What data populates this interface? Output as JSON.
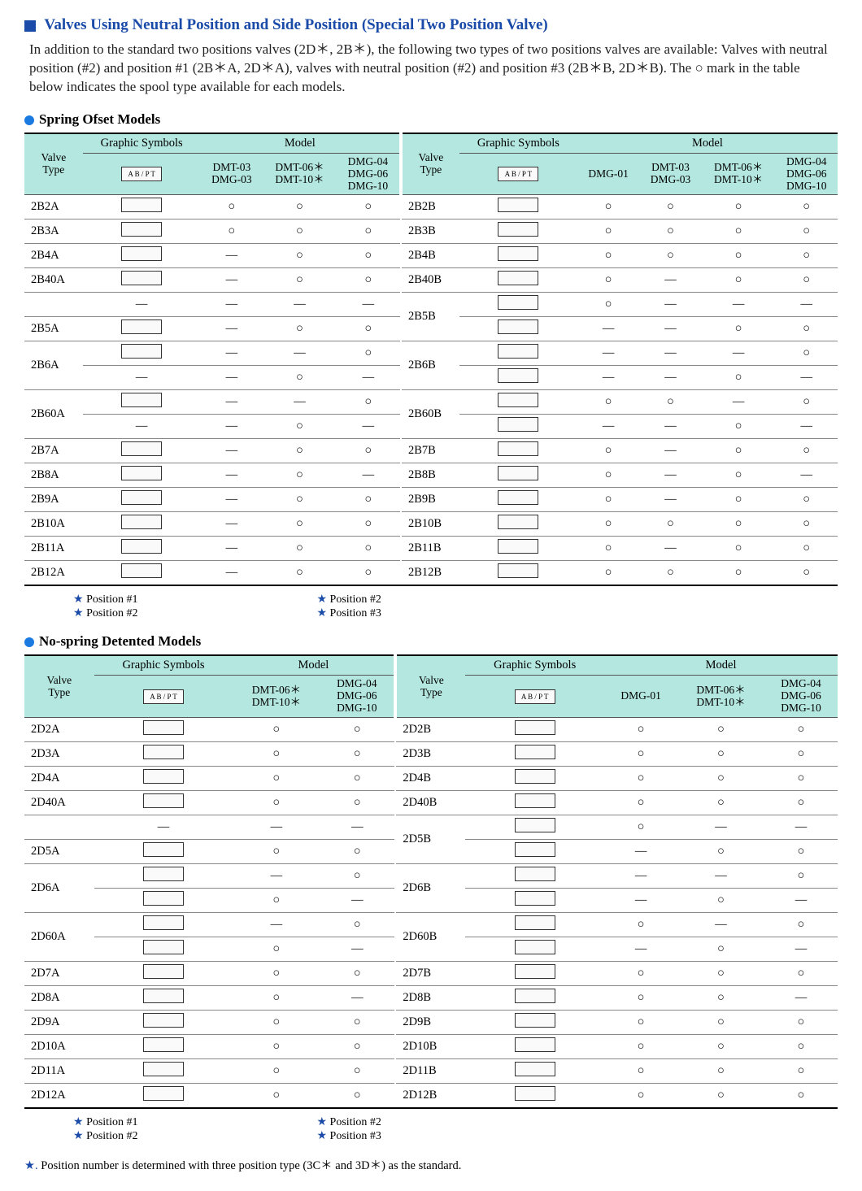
{
  "colors": {
    "heading_blue": "#1a4ba8",
    "dot_blue": "#1a7ae0",
    "header_bg": "#b3e7df",
    "border": "#888"
  },
  "title": "Valves Using Neutral Position and Side Position (Special Two Position Valve)",
  "intro": "In addition to the standard two positions valves (2D＊, 2B＊), the following two types of two positions valves are available: Valves with neutral position (#2) and position #1 (2B＊A, 2D＊A), valves with neutral position (#2) and position #3 (2B＊B, 2D＊B).\nThe ○ mark in the table below indicates the spool type available for each models.",
  "marks": {
    "circle": "○",
    "dash": "—"
  },
  "labels": {
    "valve_type": "Valve\nType",
    "graphic_symbols": "Graphic Symbols",
    "model": "Model",
    "pos1": "Position #1",
    "pos2": "Position #2",
    "pos3": "Position #3"
  },
  "sections": [
    {
      "title": "Spring Ofset Models",
      "left": {
        "model_cols": [
          "DMT-03\nDMG-03",
          "DMT-06＊\nDMT-10＊",
          "DMG-04\nDMG-06\nDMG-10"
        ],
        "rows": [
          {
            "vt": "2B2A",
            "m": [
              "○",
              "○",
              "○"
            ]
          },
          {
            "vt": "2B3A",
            "m": [
              "○",
              "○",
              "○"
            ]
          },
          {
            "vt": "2B4A",
            "m": [
              "—",
              "○",
              "○"
            ]
          },
          {
            "vt": "2B40A",
            "m": [
              "—",
              "○",
              "○"
            ]
          },
          {
            "vt": "",
            "m": [
              "—",
              "—",
              "—"
            ]
          },
          {
            "vt": "2B5A",
            "m": [
              "—",
              "○",
              "○"
            ]
          },
          {
            "vt": "2B6A",
            "m": [
              "—",
              "—",
              "○"
            ],
            "span": 2
          },
          {
            "vt": "",
            "m": [
              "—",
              "○",
              "—"
            ]
          },
          {
            "vt": "2B60A",
            "m": [
              "—",
              "—",
              "○"
            ],
            "span": 2
          },
          {
            "vt": "",
            "m": [
              "—",
              "○",
              "—"
            ]
          },
          {
            "vt": "2B7A",
            "m": [
              "—",
              "○",
              "○"
            ]
          },
          {
            "vt": "2B8A",
            "m": [
              "—",
              "○",
              "—"
            ]
          },
          {
            "vt": "2B9A",
            "m": [
              "—",
              "○",
              "○"
            ]
          },
          {
            "vt": "2B10A",
            "m": [
              "—",
              "○",
              "○"
            ]
          },
          {
            "vt": "2B11A",
            "m": [
              "—",
              "○",
              "○"
            ]
          },
          {
            "vt": "2B12A",
            "m": [
              "—",
              "○",
              "○"
            ]
          }
        ],
        "fn": [
          "Position #1",
          "Position #2"
        ]
      },
      "right": {
        "model_cols": [
          "DMG-01",
          "DMT-03\nDMG-03",
          "DMT-06＊\nDMT-10＊",
          "DMG-04\nDMG-06\nDMG-10"
        ],
        "rows": [
          {
            "vt": "2B2B",
            "m": [
              "○",
              "○",
              "○",
              "○"
            ]
          },
          {
            "vt": "2B3B",
            "m": [
              "○",
              "○",
              "○",
              "○"
            ]
          },
          {
            "vt": "2B4B",
            "m": [
              "○",
              "○",
              "○",
              "○"
            ]
          },
          {
            "vt": "2B40B",
            "m": [
              "○",
              "—",
              "○",
              "○"
            ]
          },
          {
            "vt": "2B5B",
            "m": [
              "○",
              "—",
              "—",
              "—"
            ],
            "span": 2
          },
          {
            "vt": "",
            "m": [
              "—",
              "—",
              "○",
              "○"
            ]
          },
          {
            "vt": "2B6B",
            "m": [
              "—",
              "—",
              "—",
              "○"
            ],
            "span": 2
          },
          {
            "vt": "",
            "m": [
              "—",
              "—",
              "○",
              "—"
            ]
          },
          {
            "vt": "2B60B",
            "m": [
              "○",
              "○",
              "—",
              "○"
            ],
            "span": 2
          },
          {
            "vt": "",
            "m": [
              "—",
              "—",
              "○",
              "—"
            ]
          },
          {
            "vt": "2B7B",
            "m": [
              "○",
              "—",
              "○",
              "○"
            ]
          },
          {
            "vt": "2B8B",
            "m": [
              "○",
              "—",
              "○",
              "—"
            ]
          },
          {
            "vt": "2B9B",
            "m": [
              "○",
              "—",
              "○",
              "○"
            ]
          },
          {
            "vt": "2B10B",
            "m": [
              "○",
              "○",
              "○",
              "○"
            ]
          },
          {
            "vt": "2B11B",
            "m": [
              "○",
              "—",
              "○",
              "○"
            ]
          },
          {
            "vt": "2B12B",
            "m": [
              "○",
              "○",
              "○",
              "○"
            ]
          }
        ],
        "fn": [
          "Position #2",
          "Position #3"
        ]
      }
    },
    {
      "title": "No-spring Detented Models",
      "left": {
        "model_cols": [
          "DMT-06＊\nDMT-10＊",
          "DMG-04\nDMG-06\nDMG-10"
        ],
        "rows": [
          {
            "vt": "2D2A",
            "m": [
              "○",
              "○"
            ]
          },
          {
            "vt": "2D3A",
            "m": [
              "○",
              "○"
            ]
          },
          {
            "vt": "2D4A",
            "m": [
              "○",
              "○"
            ]
          },
          {
            "vt": "2D40A",
            "m": [
              "○",
              "○"
            ]
          },
          {
            "vt": "",
            "m": [
              "—",
              "—"
            ]
          },
          {
            "vt": "2D5A",
            "m": [
              "○",
              "○"
            ]
          },
          {
            "vt": "2D6A",
            "m": [
              "—",
              "○"
            ],
            "span": 2
          },
          {
            "vt": "",
            "m": [
              "○",
              "—"
            ]
          },
          {
            "vt": "2D60A",
            "m": [
              "—",
              "○"
            ],
            "span": 2
          },
          {
            "vt": "",
            "m": [
              "○",
              "—"
            ]
          },
          {
            "vt": "2D7A",
            "m": [
              "○",
              "○"
            ]
          },
          {
            "vt": "2D8A",
            "m": [
              "○",
              "—"
            ]
          },
          {
            "vt": "2D9A",
            "m": [
              "○",
              "○"
            ]
          },
          {
            "vt": "2D10A",
            "m": [
              "○",
              "○"
            ]
          },
          {
            "vt": "2D11A",
            "m": [
              "○",
              "○"
            ]
          },
          {
            "vt": "2D12A",
            "m": [
              "○",
              "○"
            ]
          }
        ],
        "fn": [
          "Position #1",
          "Position #2"
        ]
      },
      "right": {
        "model_cols": [
          "DMG-01",
          "DMT-06＊\nDMT-10＊",
          "DMG-04\nDMG-06\nDMG-10"
        ],
        "rows": [
          {
            "vt": "2D2B",
            "m": [
              "○",
              "○",
              "○"
            ]
          },
          {
            "vt": "2D3B",
            "m": [
              "○",
              "○",
              "○"
            ]
          },
          {
            "vt": "2D4B",
            "m": [
              "○",
              "○",
              "○"
            ]
          },
          {
            "vt": "2D40B",
            "m": [
              "○",
              "○",
              "○"
            ]
          },
          {
            "vt": "2D5B",
            "m": [
              "○",
              "—",
              "—"
            ],
            "span": 2
          },
          {
            "vt": "",
            "m": [
              "—",
              "○",
              "○"
            ]
          },
          {
            "vt": "2D6B",
            "m": [
              "—",
              "—",
              "○"
            ],
            "span": 2
          },
          {
            "vt": "",
            "m": [
              "—",
              "○",
              "—"
            ]
          },
          {
            "vt": "2D60B",
            "m": [
              "○",
              "—",
              "○"
            ],
            "span": 2
          },
          {
            "vt": "",
            "m": [
              "—",
              "○",
              "—"
            ]
          },
          {
            "vt": "2D7B",
            "m": [
              "○",
              "○",
              "○"
            ]
          },
          {
            "vt": "2D8B",
            "m": [
              "○",
              "○",
              "—"
            ]
          },
          {
            "vt": "2D9B",
            "m": [
              "○",
              "○",
              "○"
            ]
          },
          {
            "vt": "2D10B",
            "m": [
              "○",
              "○",
              "○"
            ]
          },
          {
            "vt": "2D11B",
            "m": [
              "○",
              "○",
              "○"
            ]
          },
          {
            "vt": "2D12B",
            "m": [
              "○",
              "○",
              "○"
            ]
          }
        ],
        "fn": [
          "Position #2",
          "Position #3"
        ]
      }
    }
  ],
  "star_note": "Position number is determined with three position type (3C＊ and 3D＊) as the standard."
}
